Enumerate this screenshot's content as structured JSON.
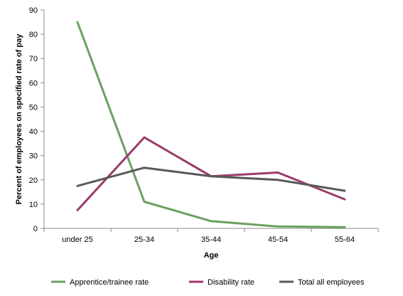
{
  "chart_data": {
    "type": "line",
    "categories": [
      "under 25",
      "25-34",
      "35-44",
      "45-54",
      "55-64"
    ],
    "series": [
      {
        "name": "Apprentice/trainee rate",
        "color": "#6aa15f",
        "values": [
          85,
          11,
          3,
          0.8,
          0.5
        ]
      },
      {
        "name": "Disability rate",
        "color": "#9c3a6a",
        "values": [
          7.5,
          37.5,
          21.5,
          23,
          12
        ]
      },
      {
        "name": "Total all employees",
        "color": "#595959",
        "values": [
          17.5,
          25,
          21.5,
          20,
          15.5
        ]
      }
    ],
    "xlabel": "Age",
    "ylabel": "Percent of employees on specified rate of pay",
    "ylim": [
      0,
      90
    ],
    "yticks": [
      0,
      10,
      20,
      30,
      40,
      50,
      60,
      70,
      80,
      90
    ],
    "grid": false,
    "legend_position": "bottom"
  }
}
